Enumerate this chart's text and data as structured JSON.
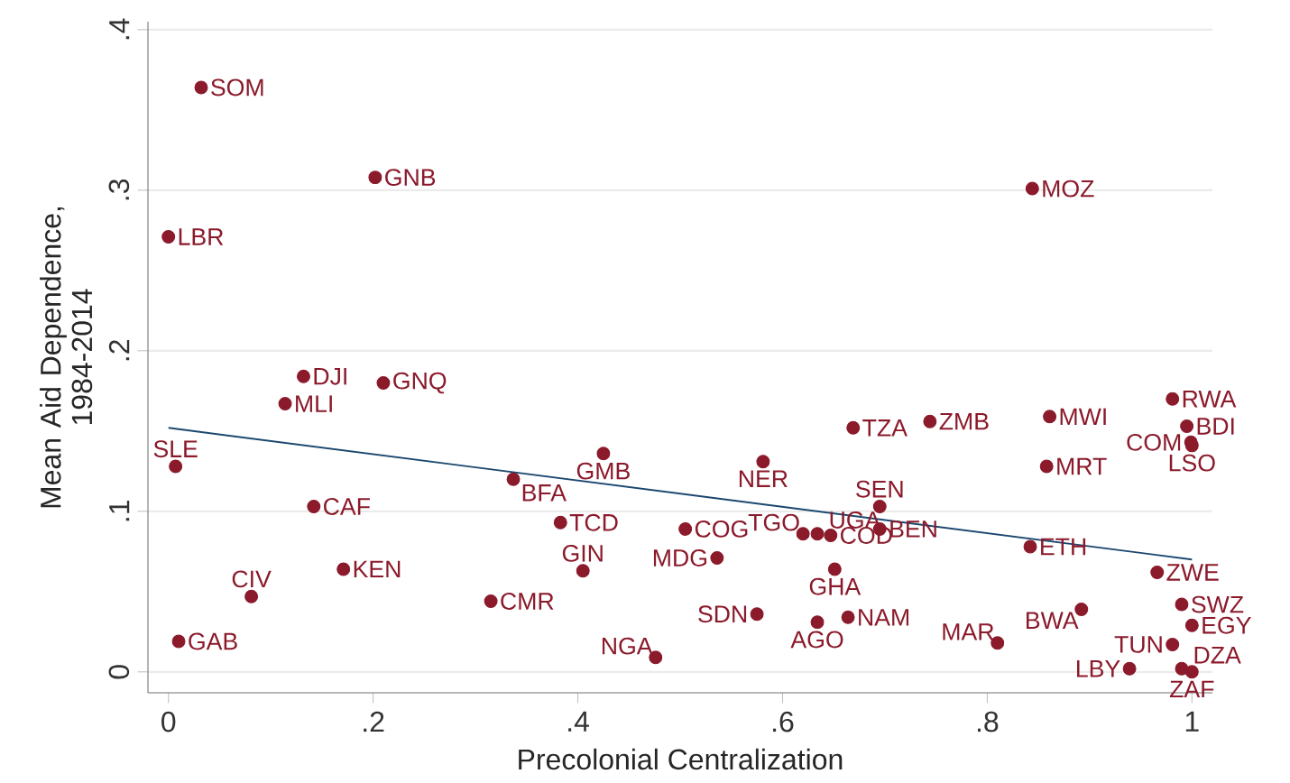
{
  "chart_data": {
    "type": "scatter",
    "xlabel": "Precolonial Centralization",
    "ylabel": "Mean Aid Dependence, 1984-2014",
    "xlim": [
      -0.02,
      1.02
    ],
    "ylim": [
      -0.013,
      0.405
    ],
    "xticks": [
      {
        "value": 0,
        "label": "0"
      },
      {
        "value": 0.2,
        "label": ".2"
      },
      {
        "value": 0.4,
        "label": ".4"
      },
      {
        "value": 0.6,
        "label": ".6"
      },
      {
        "value": 0.8,
        "label": ".8"
      },
      {
        "value": 1,
        "label": "1"
      }
    ],
    "yticks": [
      {
        "value": 0,
        "label": "0"
      },
      {
        "value": 0.1,
        "label": ".1"
      },
      {
        "value": 0.2,
        "label": ".2"
      },
      {
        "value": 0.3,
        "label": ".3"
      },
      {
        "value": 0.4,
        "label": ".4"
      }
    ],
    "grid": "y",
    "marker": "circle",
    "series": [
      {
        "type": "scatter",
        "color": "#8b1a2b",
        "x": [
          0.032,
          0.202,
          0.0,
          0.844,
          0.132,
          0.21,
          0.114,
          0.007,
          0.142,
          0.171,
          0.081,
          0.01,
          0.315,
          0.337,
          0.425,
          0.383,
          0.405,
          0.505,
          0.536,
          0.476,
          0.575,
          0.581,
          0.62,
          0.634,
          0.647,
          0.651,
          0.634,
          0.664,
          0.695,
          0.695,
          0.669,
          0.744,
          0.81,
          0.861,
          0.858,
          0.842,
          0.892,
          0.939,
          0.981,
          0.995,
          0.999,
          1.0,
          0.966,
          0.99,
          1.0,
          0.981,
          0.99,
          1.0
        ],
        "values": [
          0.364,
          0.308,
          0.271,
          0.301,
          0.184,
          0.18,
          0.167,
          0.128,
          0.103,
          0.064,
          0.047,
          0.019,
          0.044,
          0.12,
          0.136,
          0.093,
          0.063,
          0.089,
          0.071,
          0.009,
          0.036,
          0.131,
          0.086,
          0.086,
          0.085,
          0.064,
          0.031,
          0.034,
          0.103,
          0.089,
          0.152,
          0.156,
          0.018,
          0.159,
          0.128,
          0.078,
          0.039,
          0.002,
          0.17,
          0.153,
          0.143,
          0.141,
          0.062,
          0.042,
          0.029,
          0.017,
          0.002,
          0.0
        ]
      },
      {
        "type": "line",
        "marker": "none",
        "color": "#1a476f",
        "x": [
          0,
          1
        ],
        "values": [
          0.152,
          0.07
        ]
      }
    ],
    "annotations": [
      {
        "text": "SOM",
        "x": 0.032,
        "y": 0.364
      },
      {
        "text": "GNB",
        "x": 0.202,
        "y": 0.308
      },
      {
        "text": "LBR",
        "x": 0.0,
        "y": 0.271
      },
      {
        "text": "MOZ",
        "x": 0.844,
        "y": 0.301
      },
      {
        "text": "DJI",
        "x": 0.132,
        "y": 0.184
      },
      {
        "text": "GNQ",
        "x": 0.21,
        "y": 0.18
      },
      {
        "text": "MLI",
        "x": 0.114,
        "y": 0.167
      },
      {
        "text": "SLE",
        "x": 0.007,
        "y": 0.128
      },
      {
        "text": "CAF",
        "x": 0.142,
        "y": 0.103
      },
      {
        "text": "KEN",
        "x": 0.171,
        "y": 0.064
      },
      {
        "text": "CIV",
        "x": 0.081,
        "y": 0.047
      },
      {
        "text": "GAB",
        "x": 0.01,
        "y": 0.019
      },
      {
        "text": "CMR",
        "x": 0.315,
        "y": 0.044
      },
      {
        "text": "BFA",
        "x": 0.337,
        "y": 0.12
      },
      {
        "text": "GMB",
        "x": 0.425,
        "y": 0.136
      },
      {
        "text": "TCD",
        "x": 0.383,
        "y": 0.093
      },
      {
        "text": "GIN",
        "x": 0.405,
        "y": 0.063
      },
      {
        "text": "COG",
        "x": 0.505,
        "y": 0.089
      },
      {
        "text": "MDG",
        "x": 0.536,
        "y": 0.071
      },
      {
        "text": "NGA",
        "x": 0.476,
        "y": 0.009
      },
      {
        "text": "SDN",
        "x": 0.575,
        "y": 0.036
      },
      {
        "text": "NER",
        "x": 0.581,
        "y": 0.131
      },
      {
        "text": "TGO",
        "x": 0.62,
        "y": 0.086
      },
      {
        "text": "UGA",
        "x": 0.634,
        "y": 0.086
      },
      {
        "text": "COD",
        "x": 0.647,
        "y": 0.085
      },
      {
        "text": "GHA",
        "x": 0.651,
        "y": 0.064
      },
      {
        "text": "AGO",
        "x": 0.634,
        "y": 0.031
      },
      {
        "text": "NAM",
        "x": 0.664,
        "y": 0.034
      },
      {
        "text": "SEN",
        "x": 0.695,
        "y": 0.103
      },
      {
        "text": "BEN",
        "x": 0.695,
        "y": 0.089
      },
      {
        "text": "TZA",
        "x": 0.669,
        "y": 0.152
      },
      {
        "text": "ZMB",
        "x": 0.744,
        "y": 0.156
      },
      {
        "text": "MAR",
        "x": 0.81,
        "y": 0.018
      },
      {
        "text": "MWI",
        "x": 0.861,
        "y": 0.159
      },
      {
        "text": "MRT",
        "x": 0.858,
        "y": 0.128
      },
      {
        "text": "ETH",
        "x": 0.842,
        "y": 0.078
      },
      {
        "text": "BWA",
        "x": 0.892,
        "y": 0.039
      },
      {
        "text": "LBY",
        "x": 0.939,
        "y": 0.002
      },
      {
        "text": "RWA",
        "x": 0.981,
        "y": 0.17
      },
      {
        "text": "BDI",
        "x": 0.995,
        "y": 0.153
      },
      {
        "text": "COM",
        "x": 0.999,
        "y": 0.143
      },
      {
        "text": "LSO",
        "x": 1.0,
        "y": 0.141
      },
      {
        "text": "ZWE",
        "x": 0.966,
        "y": 0.062
      },
      {
        "text": "SWZ",
        "x": 0.99,
        "y": 0.042
      },
      {
        "text": "EGY",
        "x": 1.0,
        "y": 0.029
      },
      {
        "text": "TUN",
        "x": 0.981,
        "y": 0.017
      },
      {
        "text": "DZA",
        "x": 0.99,
        "y": 0.002
      },
      {
        "text": "ZAF",
        "x": 1.0,
        "y": 0.0
      }
    ]
  }
}
